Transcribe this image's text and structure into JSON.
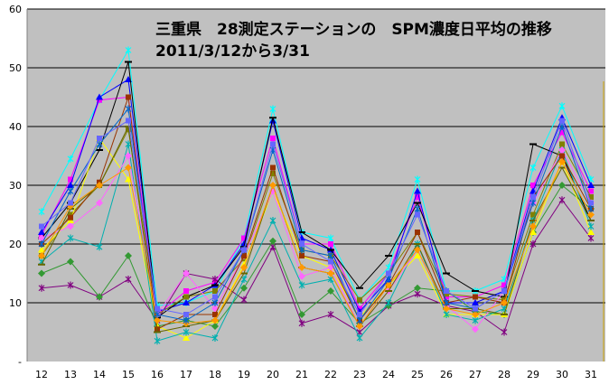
{
  "chart_data": {
    "type": "line",
    "title_line1": "三重県　28測定ステーションの　SPM濃度日平均の推移",
    "title_line2": "2011/3/12から3/31",
    "xlabel": "",
    "ylabel": "",
    "x": [
      12,
      13,
      14,
      15,
      16,
      17,
      18,
      19,
      20,
      21,
      22,
      23,
      24,
      25,
      26,
      27,
      28,
      29,
      30,
      31
    ],
    "ylim": [
      0,
      60
    ],
    "yticks": [
      0,
      10,
      20,
      30,
      40,
      50,
      60
    ],
    "ytick_labels": [
      "-",
      "10",
      "20",
      "30",
      "40",
      "50",
      "60"
    ],
    "grid": true,
    "legend": "none",
    "plot_background": "#c0c0c0",
    "series": [
      {
        "color": "#00ffff",
        "marker": "star",
        "values": [
          25.5,
          34.5,
          44.5,
          53,
          9.5,
          10,
          12,
          21,
          43,
          22,
          21,
          10.5,
          16,
          31,
          12,
          12,
          14,
          33,
          43.5,
          31
        ]
      },
      {
        "color": "#ff00ff",
        "marker": "square",
        "values": [
          21.5,
          31,
          44.5,
          45,
          8,
          12,
          13.5,
          21,
          38,
          20,
          20,
          9,
          15,
          28,
          11,
          11,
          13,
          30,
          39,
          29
        ]
      },
      {
        "color": "#0000ff",
        "marker": "triangle",
        "values": [
          22,
          30,
          45,
          48,
          8.5,
          10,
          13,
          20,
          41,
          21,
          19,
          8.5,
          14,
          29,
          10,
          10,
          12,
          29,
          41.5,
          30
        ]
      },
      {
        "color": "#800080",
        "marker": "star",
        "values": [
          12.5,
          13,
          11,
          14,
          7,
          15,
          14,
          10.5,
          19.5,
          6.5,
          8,
          5,
          9.5,
          11.5,
          9.5,
          8.5,
          5,
          20,
          27.5,
          21
        ]
      },
      {
        "color": "#339933",
        "marker": "diamond",
        "values": [
          15,
          17,
          11,
          18,
          6,
          7,
          6,
          12.5,
          20.5,
          8,
          12,
          6.5,
          9.5,
          12.5,
          12,
          8.5,
          8,
          22,
          30,
          26
        ]
      },
      {
        "color": "#000000",
        "marker": "bar",
        "values": [
          21,
          27,
          36,
          51,
          7.5,
          11,
          13,
          19.5,
          41.5,
          22,
          19,
          12.5,
          18,
          27,
          15,
          12,
          11,
          37,
          35,
          24
        ]
      },
      {
        "color": "#808000",
        "marker": "square",
        "values": [
          18,
          25,
          30,
          39.5,
          8,
          11,
          12,
          17.5,
          32,
          19,
          18,
          10.5,
          15,
          22,
          11.5,
          11,
          10.5,
          25,
          37,
          28
        ]
      },
      {
        "color": "#ffff00",
        "marker": "triangle",
        "values": [
          19,
          24,
          38,
          31,
          6,
          4,
          7,
          16.5,
          29,
          18,
          16,
          7.5,
          13,
          18,
          8,
          8,
          8,
          22,
          34,
          22
        ]
      },
      {
        "color": "#00b0b0",
        "marker": "star",
        "values": [
          17,
          21,
          19.5,
          37,
          3.5,
          5,
          4,
          14,
          24,
          13,
          14,
          4,
          10,
          20,
          8,
          7,
          9,
          24,
          36,
          23
        ]
      },
      {
        "color": "#ff66ff",
        "marker": "diamond",
        "values": [
          21,
          23,
          27,
          35,
          8,
          15,
          9,
          18,
          29,
          14.5,
          16,
          6,
          12,
          19,
          9.5,
          5.5,
          12,
          27,
          36,
          27
        ]
      },
      {
        "color": "#993300",
        "marker": "square",
        "values": [
          20,
          24.5,
          30.5,
          45,
          5.5,
          8,
          8,
          18,
          33,
          18,
          17,
          7,
          13,
          22,
          10,
          11,
          10,
          28,
          35,
          26
        ]
      },
      {
        "color": "#666600",
        "marker": "bar",
        "values": [
          16.5,
          26,
          30,
          40,
          5,
          6,
          7,
          15,
          30,
          16,
          15,
          6,
          12,
          20,
          9,
          9,
          8,
          24,
          33,
          24
        ]
      },
      {
        "color": "#ff9900",
        "marker": "diamond",
        "values": [
          18,
          26.5,
          30,
          33,
          7,
          6.5,
          7,
          16,
          30,
          16,
          15,
          6,
          13,
          19,
          9,
          8,
          10,
          23,
          34,
          25
        ]
      },
      {
        "color": "#0066cc",
        "marker": "star",
        "values": [
          20,
          29,
          37,
          43,
          8,
          7,
          10,
          19,
          36,
          19,
          18,
          7,
          14,
          26,
          10,
          9,
          12,
          27,
          40,
          26
        ]
      },
      {
        "color": "#6666ff",
        "marker": "square",
        "values": [
          23,
          27,
          38,
          41,
          9,
          8,
          11,
          19,
          37,
          20,
          17,
          8,
          15,
          25,
          12,
          9,
          12,
          28,
          41,
          27
        ]
      }
    ]
  }
}
